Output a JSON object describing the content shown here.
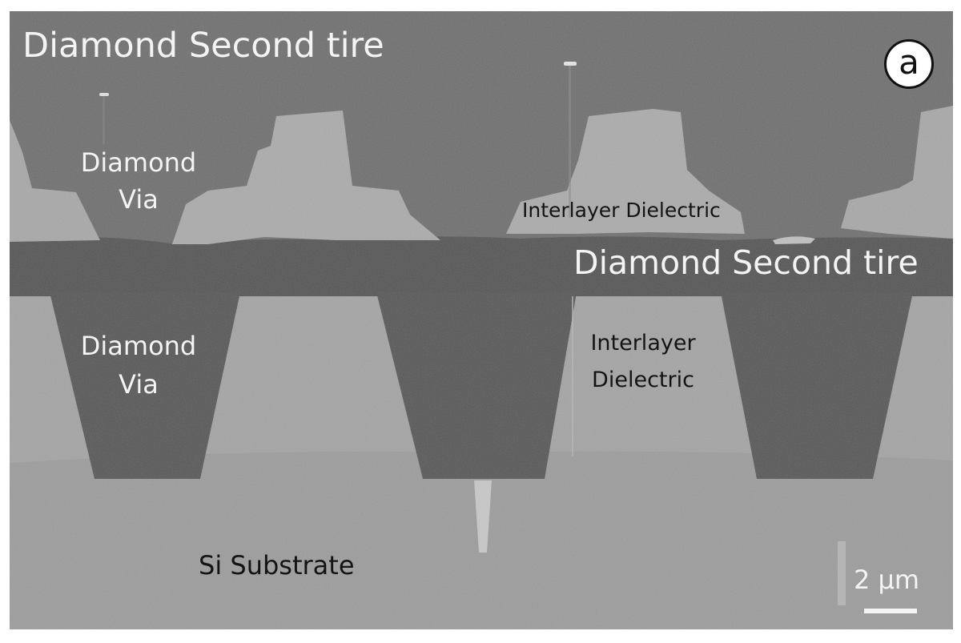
{
  "labels": {
    "top_second_tier": "Diamond Second tire",
    "upper_via": [
      "Diamond",
      "Via"
    ],
    "upper_dielectric": "Interlayer Dielectric",
    "middle_second_tier": "Diamond Second tire",
    "lower_via": [
      "Diamond",
      "Via"
    ],
    "lower_dielectric": [
      "Interlayer",
      "Dielectric"
    ],
    "substrate": "Si Substrate",
    "scale_bar": "2 µm",
    "panel_letter": "a"
  },
  "colors": {
    "background_gray": "#6f6f6f",
    "dark_diamond": "#555555",
    "light_dielectric": "#a7a7a7",
    "substrate_gray": "#9a9a9a",
    "label_white": "#f4f4f4",
    "label_dark": "#141414"
  }
}
